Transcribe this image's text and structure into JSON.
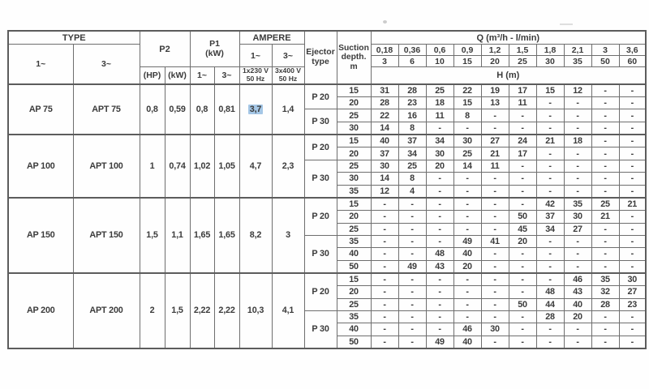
{
  "colors": {
    "selection_highlight": "#a5c7e6",
    "border": "#6e6e6e",
    "text": "#3b3b3b",
    "page_background": "#fefefe"
  },
  "header": {
    "type_label": "TYPE",
    "phase_1": "1~",
    "phase_3": "3~",
    "p2_label": "P2",
    "hp_label": "(HP)",
    "kw_label": "(kW)",
    "p1_line1": "P1",
    "p1_line2": "(kW)",
    "ampere_label": "AMPERE",
    "amp1_voltage": "1x230 V",
    "amp1_freq": "50 Hz",
    "amp3_voltage": "3x400 V",
    "amp3_freq": "50 Hz",
    "ejector_line1": "Ejector",
    "ejector_line2": "type",
    "suction_line1": "Suction",
    "suction_line2": "depth.",
    "suction_line3": "m",
    "q_title": "Q (m³/h - l/min)",
    "q_m3h": [
      "0,18",
      "0,36",
      "0,6",
      "0,9",
      "1,2",
      "1,5",
      "1,8",
      "2,1",
      "3",
      "3,6"
    ],
    "q_lmin": [
      "3",
      "6",
      "10",
      "15",
      "20",
      "25",
      "30",
      "35",
      "50",
      "60"
    ],
    "h_title": "H (m)"
  },
  "groups": [
    {
      "model_1": "AP 75",
      "model_3": "APT 75",
      "p2_hp": "0,8",
      "p2_kw": "0,59",
      "p1_1": "0,8",
      "p1_3": "0,81",
      "amp_1": "3,7",
      "amp_3": "1,4",
      "amp_1_selected": true,
      "sections": [
        {
          "ejector": "P 20",
          "rows": [
            {
              "depth": "15",
              "h": [
                "31",
                "28",
                "25",
                "22",
                "19",
                "17",
                "15",
                "12",
                "-",
                "-"
              ]
            },
            {
              "depth": "20",
              "h": [
                "28",
                "23",
                "18",
                "15",
                "13",
                "11",
                "-",
                "-",
                "-",
                "-"
              ]
            }
          ]
        },
        {
          "ejector": "P 30",
          "rows": [
            {
              "depth": "25",
              "h": [
                "22",
                "16",
                "11",
                "8",
                "-",
                "-",
                "-",
                "-",
                "-",
                "-"
              ]
            },
            {
              "depth": "30",
              "h": [
                "14",
                "8",
                "-",
                "-",
                "-",
                "-",
                "-",
                "-",
                "-",
                "-"
              ]
            }
          ]
        }
      ]
    },
    {
      "model_1": "AP 100",
      "model_3": "APT 100",
      "p2_hp": "1",
      "p2_kw": "0,74",
      "p1_1": "1,02",
      "p1_3": "1,05",
      "amp_1": "4,7",
      "amp_3": "2,3",
      "amp_1_selected": false,
      "sections": [
        {
          "ejector": "P 20",
          "rows": [
            {
              "depth": "15",
              "h": [
                "40",
                "37",
                "34",
                "30",
                "27",
                "24",
                "21",
                "18",
                "-",
                "-"
              ]
            },
            {
              "depth": "20",
              "h": [
                "37",
                "34",
                "30",
                "25",
                "21",
                "17",
                "-",
                "-",
                "-",
                "-"
              ]
            }
          ]
        },
        {
          "ejector": "P 30",
          "rows": [
            {
              "depth": "25",
              "h": [
                "30",
                "25",
                "20",
                "14",
                "11",
                "-",
                "-",
                "-",
                "-",
                "-"
              ]
            },
            {
              "depth": "30",
              "h": [
                "14",
                "8",
                "-",
                "-",
                "-",
                "-",
                "-",
                "-",
                "-",
                "-"
              ]
            },
            {
              "depth": "35",
              "h": [
                "12",
                "4",
                "-",
                "-",
                "-",
                "-",
                "-",
                "-",
                "-",
                "-"
              ]
            }
          ]
        }
      ]
    },
    {
      "model_1": "AP 150",
      "model_3": "APT 150",
      "p2_hp": "1,5",
      "p2_kw": "1,1",
      "p1_1": "1,65",
      "p1_3": "1,65",
      "amp_1": "8,2",
      "amp_3": "3",
      "amp_1_selected": false,
      "sections": [
        {
          "ejector": "P 20",
          "rows": [
            {
              "depth": "15",
              "h": [
                "-",
                "-",
                "-",
                "-",
                "-",
                "-",
                "42",
                "35",
                "25",
                "21"
              ]
            },
            {
              "depth": "20",
              "h": [
                "-",
                "-",
                "-",
                "-",
                "-",
                "50",
                "37",
                "30",
                "21",
                "-"
              ]
            },
            {
              "depth": "25",
              "h": [
                "-",
                "-",
                "-",
                "-",
                "-",
                "45",
                "34",
                "27",
                "-",
                "-"
              ]
            }
          ]
        },
        {
          "ejector": "P 30",
          "rows": [
            {
              "depth": "35",
              "h": [
                "-",
                "-",
                "-",
                "49",
                "41",
                "20",
                "-",
                "-",
                "-",
                "-"
              ]
            },
            {
              "depth": "40",
              "h": [
                "-",
                "-",
                "48",
                "40",
                "-",
                "-",
                "-",
                "-",
                "-",
                "-"
              ]
            },
            {
              "depth": "50",
              "h": [
                "-",
                "49",
                "43",
                "20",
                "-",
                "-",
                "-",
                "-",
                "-",
                "-"
              ]
            }
          ]
        }
      ]
    },
    {
      "model_1": "AP 200",
      "model_3": "APT 200",
      "p2_hp": "2",
      "p2_kw": "1,5",
      "p1_1": "2,22",
      "p1_3": "2,22",
      "amp_1": "10,3",
      "amp_3": "4,1",
      "amp_1_selected": false,
      "sections": [
        {
          "ejector": "P 20",
          "rows": [
            {
              "depth": "15",
              "h": [
                "-",
                "-",
                "-",
                "-",
                "-",
                "-",
                "-",
                "46",
                "35",
                "30"
              ]
            },
            {
              "depth": "20",
              "h": [
                "-",
                "-",
                "-",
                "-",
                "-",
                "-",
                "48",
                "43",
                "32",
                "27"
              ]
            },
            {
              "depth": "25",
              "h": [
                "-",
                "-",
                "-",
                "-",
                "-",
                "50",
                "44",
                "40",
                "28",
                "23"
              ]
            }
          ]
        },
        {
          "ejector": "P 30",
          "rows": [
            {
              "depth": "35",
              "h": [
                "-",
                "-",
                "-",
                "-",
                "-",
                "-",
                "28",
                "20",
                "-",
                "-"
              ]
            },
            {
              "depth": "40",
              "h": [
                "-",
                "-",
                "-",
                "46",
                "30",
                "-",
                "-",
                "-",
                "-",
                "-"
              ]
            },
            {
              "depth": "50",
              "h": [
                "-",
                "-",
                "49",
                "40",
                "-",
                "-",
                "-",
                "-",
                "-",
                "-"
              ]
            }
          ]
        }
      ]
    }
  ]
}
